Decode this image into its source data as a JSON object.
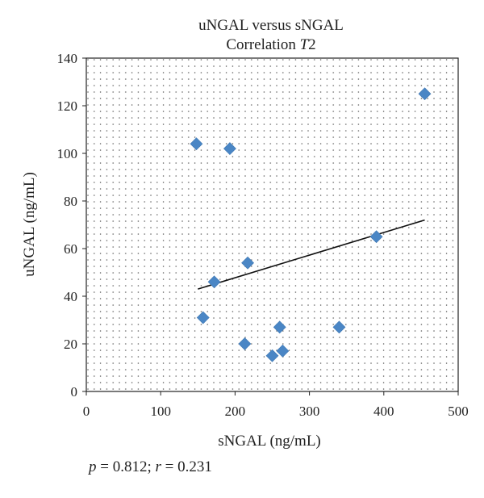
{
  "chart_data": {
    "type": "scatter",
    "title": "uNGAL versus sNGAL",
    "subtitle": "Correlation T2",
    "subtitle_plain": "Correlation ",
    "subtitle_italic": "T",
    "subtitle_suffix": "2",
    "xlabel": "sNGAL (ng/mL)",
    "ylabel": "uNGAL (ng/mL)",
    "xlim": [
      0,
      500
    ],
    "ylim": [
      0,
      140
    ],
    "xticks": [
      0,
      100,
      200,
      300,
      400,
      500
    ],
    "yticks": [
      0,
      20,
      40,
      60,
      80,
      100,
      120,
      140
    ],
    "grid": "dotted",
    "marker": "diamond",
    "marker_color": "#4a86c5",
    "trendline": {
      "x": [
        150,
        455
      ],
      "y": [
        43,
        72
      ],
      "color": "#111111"
    },
    "points": [
      {
        "x": 148,
        "y": 104
      },
      {
        "x": 193,
        "y": 102
      },
      {
        "x": 455,
        "y": 125
      },
      {
        "x": 217,
        "y": 54
      },
      {
        "x": 172,
        "y": 46
      },
      {
        "x": 390,
        "y": 65
      },
      {
        "x": 157,
        "y": 31
      },
      {
        "x": 213,
        "y": 20
      },
      {
        "x": 260,
        "y": 27
      },
      {
        "x": 250,
        "y": 15
      },
      {
        "x": 264,
        "y": 17
      },
      {
        "x": 340,
        "y": 27
      }
    ]
  },
  "stats": {
    "p_symbol": "p",
    "p_value": " = 0.812; ",
    "r_symbol": "r",
    "r_value": " = 0.231"
  }
}
